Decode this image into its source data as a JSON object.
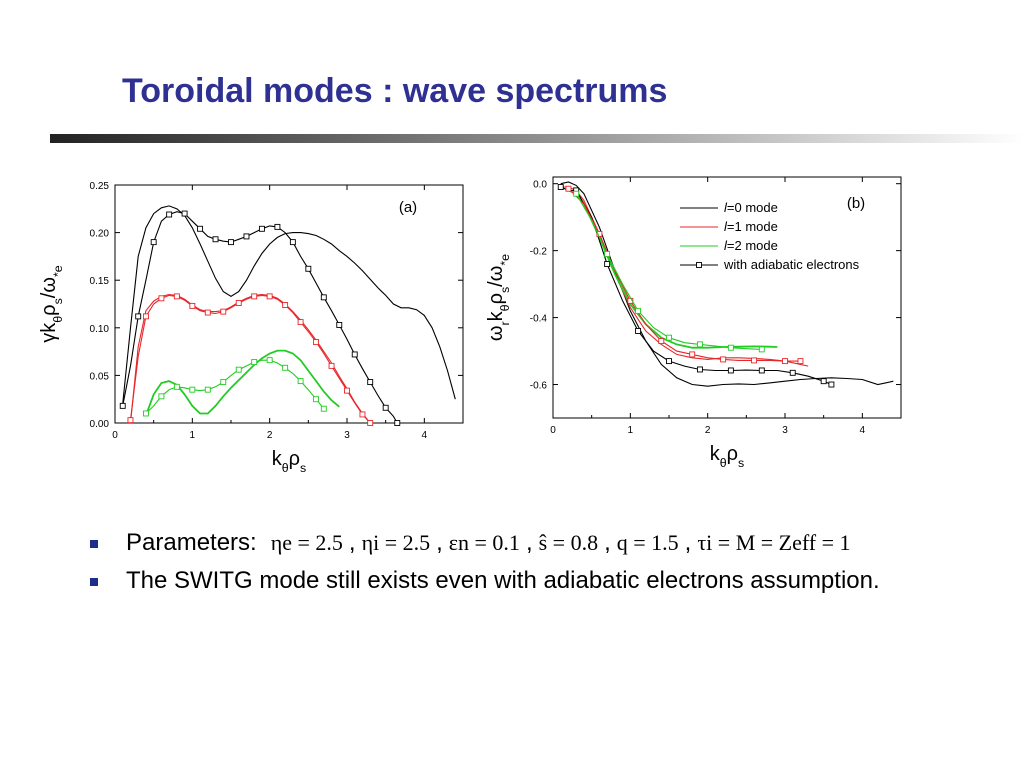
{
  "slide": {
    "title": "Toroidal modes : wave spectrums"
  },
  "bullets": {
    "params_label": "Parameters:",
    "params": [
      "ηe = 2.5",
      "ηi = 2.5",
      "εn = 0.1",
      "ŝ = 0.8",
      "q = 1.5",
      "τi = M = Zeff = 1"
    ],
    "note": "The SWITG mode still exists even with adiabatic electrons assumption."
  },
  "colors": {
    "title": "#2e3192",
    "bullet": "#1f2d8a",
    "l0": "#000000",
    "l1": "#e8262a",
    "l2": "#22cc22",
    "adiabatic": "#000000"
  },
  "chart_data": [
    {
      "type": "line",
      "panel_label": "(a)",
      "xlabel": "kθρs",
      "ylabel": "γkθρs/ω*e",
      "xlim": [
        0,
        4.5
      ],
      "ylim": [
        0,
        0.25
      ],
      "x_ticks": [
        "0",
        "1",
        "2",
        "3",
        "4"
      ],
      "y_ticks": [
        "0.00",
        "0.05",
        "0.10",
        "0.15",
        "0.20",
        "0.25"
      ],
      "series": [
        {
          "color": "#000000",
          "marker": "none",
          "x": [
            0.1,
            0.2,
            0.3,
            0.4,
            0.5,
            0.6,
            0.7,
            0.8,
            0.9,
            1.0,
            1.1,
            1.2,
            1.3,
            1.4,
            1.5,
            1.6,
            1.7,
            1.8,
            1.9,
            2.0,
            2.1,
            2.2,
            2.3,
            2.4,
            2.5,
            2.6,
            2.7,
            2.8,
            2.9,
            3.0,
            3.1,
            3.2,
            3.3,
            3.4,
            3.5,
            3.6,
            3.7,
            3.8,
            3.9,
            4.0,
            4.1,
            4.2,
            4.3,
            4.4
          ],
          "y": [
            0.02,
            0.1,
            0.175,
            0.205,
            0.22,
            0.226,
            0.228,
            0.225,
            0.218,
            0.205,
            0.188,
            0.17,
            0.152,
            0.138,
            0.133,
            0.138,
            0.15,
            0.165,
            0.178,
            0.188,
            0.195,
            0.199,
            0.2,
            0.2,
            0.199,
            0.197,
            0.193,
            0.188,
            0.181,
            0.175,
            0.168,
            0.16,
            0.151,
            0.142,
            0.134,
            0.125,
            0.121,
            0.121,
            0.119,
            0.113,
            0.1,
            0.08,
            0.055,
            0.025
          ]
        },
        {
          "color": "#000000",
          "marker": "square",
          "x": [
            0.1,
            0.2,
            0.3,
            0.4,
            0.5,
            0.6,
            0.7,
            0.8,
            0.9,
            1.0,
            1.1,
            1.2,
            1.3,
            1.4,
            1.5,
            1.6,
            1.7,
            1.8,
            1.9,
            2.0,
            2.1,
            2.2,
            2.3,
            2.4,
            2.5,
            2.6,
            2.7,
            2.8,
            2.9,
            3.0,
            3.1,
            3.2,
            3.3,
            3.4,
            3.5,
            3.6,
            3.65
          ],
          "y": [
            0.018,
            0.06,
            0.112,
            0.15,
            0.19,
            0.212,
            0.219,
            0.222,
            0.22,
            0.212,
            0.204,
            0.196,
            0.193,
            0.191,
            0.19,
            0.193,
            0.196,
            0.2,
            0.204,
            0.207,
            0.206,
            0.2,
            0.19,
            0.175,
            0.162,
            0.147,
            0.132,
            0.118,
            0.103,
            0.088,
            0.072,
            0.057,
            0.043,
            0.029,
            0.016,
            0.007,
            0.0
          ]
        },
        {
          "color": "#e8262a",
          "marker": "none",
          "x": [
            0.2,
            0.3,
            0.4,
            0.5,
            0.6,
            0.7,
            0.8,
            0.9,
            1.0,
            1.1,
            1.2,
            1.3,
            1.4,
            1.5,
            1.6,
            1.7,
            1.8,
            1.9,
            2.0,
            2.1,
            2.2,
            2.3,
            2.4,
            2.5,
            2.6,
            2.7,
            2.8,
            2.9,
            3.0,
            3.1,
            3.2,
            3.3
          ],
          "y": [
            0.0,
            0.08,
            0.118,
            0.128,
            0.133,
            0.135,
            0.134,
            0.13,
            0.124,
            0.119,
            0.117,
            0.117,
            0.118,
            0.122,
            0.127,
            0.131,
            0.134,
            0.135,
            0.134,
            0.131,
            0.125,
            0.117,
            0.108,
            0.098,
            0.087,
            0.075,
            0.063,
            0.049,
            0.036,
            0.022,
            0.01,
            0.0
          ]
        },
        {
          "color": "#e8262a",
          "marker": "square",
          "x": [
            0.2,
            0.3,
            0.4,
            0.5,
            0.6,
            0.7,
            0.8,
            0.9,
            1.0,
            1.1,
            1.2,
            1.3,
            1.4,
            1.5,
            1.6,
            1.7,
            1.8,
            1.9,
            2.0,
            2.1,
            2.2,
            2.3,
            2.4,
            2.5,
            2.6,
            2.7,
            2.8,
            2.9,
            3.0,
            3.1,
            3.2,
            3.3
          ],
          "y": [
            0.003,
            0.07,
            0.112,
            0.125,
            0.131,
            0.134,
            0.133,
            0.129,
            0.123,
            0.118,
            0.116,
            0.115,
            0.117,
            0.121,
            0.126,
            0.13,
            0.133,
            0.134,
            0.133,
            0.13,
            0.124,
            0.116,
            0.106,
            0.096,
            0.085,
            0.073,
            0.06,
            0.047,
            0.034,
            0.021,
            0.009,
            0.0
          ]
        },
        {
          "color": "#22cc22",
          "marker": "none",
          "x": [
            0.4,
            0.5,
            0.6,
            0.7,
            0.8,
            0.9,
            1.0,
            1.1,
            1.2,
            1.3,
            1.4,
            1.5,
            1.6,
            1.7,
            1.8,
            1.9,
            2.0,
            2.1,
            2.2,
            2.3,
            2.4,
            2.5,
            2.6,
            2.7,
            2.8,
            2.9
          ],
          "y": [
            0.008,
            0.03,
            0.042,
            0.044,
            0.04,
            0.03,
            0.018,
            0.01,
            0.01,
            0.018,
            0.028,
            0.037,
            0.045,
            0.053,
            0.061,
            0.068,
            0.073,
            0.076,
            0.076,
            0.073,
            0.066,
            0.055,
            0.044,
            0.033,
            0.024,
            0.017
          ]
        },
        {
          "color": "#22cc22",
          "marker": "square",
          "x": [
            0.4,
            0.5,
            0.6,
            0.7,
            0.8,
            0.9,
            1.0,
            1.1,
            1.2,
            1.3,
            1.4,
            1.5,
            1.6,
            1.7,
            1.8,
            1.9,
            2.0,
            2.1,
            2.2,
            2.3,
            2.4,
            2.5,
            2.6,
            2.7
          ],
          "y": [
            0.01,
            0.018,
            0.028,
            0.035,
            0.038,
            0.037,
            0.035,
            0.034,
            0.035,
            0.038,
            0.043,
            0.05,
            0.056,
            0.06,
            0.064,
            0.066,
            0.066,
            0.063,
            0.058,
            0.052,
            0.044,
            0.035,
            0.025,
            0.015
          ]
        }
      ]
    },
    {
      "type": "line",
      "panel_label": "(b)",
      "xlabel": "kθρs",
      "ylabel": "ωrkθρs/ω*e",
      "xlim": [
        0,
        4.5
      ],
      "ylim": [
        -0.7,
        0.02
      ],
      "x_ticks": [
        "0",
        "1",
        "2",
        "3",
        "4"
      ],
      "y_ticks": [
        "0.0",
        "-0.2",
        "-0.4",
        "-0.6"
      ],
      "legend": [
        {
          "label": "l=0 mode",
          "l": "l",
          "rest": "=0 mode",
          "color": "#000000",
          "marker": "none"
        },
        {
          "label": "l=1 mode",
          "l": "l",
          "rest": "=1 mode",
          "color": "#e8262a",
          "marker": "none"
        },
        {
          "label": "l=2 mode",
          "l": "l",
          "rest": "=2 mode",
          "color": "#22cc22",
          "marker": "none"
        },
        {
          "label": "with adiabatic electrons",
          "l": "",
          "rest": "with adiabatic electrons",
          "color": "#000000",
          "marker": "square"
        }
      ],
      "legend_position": "top-right",
      "series": [
        {
          "name": "l=0 mode",
          "color": "#000000",
          "marker": "none",
          "x": [
            0.1,
            0.2,
            0.3,
            0.4,
            0.6,
            0.8,
            1.0,
            1.2,
            1.4,
            1.6,
            1.8,
            2.0,
            2.2,
            2.4,
            2.6,
            2.8,
            3.0,
            3.2,
            3.4,
            3.6,
            3.8,
            4.0,
            4.2,
            4.3,
            4.4
          ],
          "y": [
            0.0,
            0.005,
            -0.005,
            -0.03,
            -0.13,
            -0.26,
            -0.38,
            -0.47,
            -0.54,
            -0.58,
            -0.6,
            -0.605,
            -0.6,
            -0.598,
            -0.6,
            -0.595,
            -0.59,
            -0.585,
            -0.582,
            -0.58,
            -0.582,
            -0.585,
            -0.6,
            -0.595,
            -0.59
          ]
        },
        {
          "name": "l=1 mode",
          "color": "#e8262a",
          "marker": "none",
          "x": [
            0.1,
            0.2,
            0.3,
            0.4,
            0.6,
            0.8,
            1.0,
            1.2,
            1.4,
            1.6,
            1.8,
            2.0,
            2.2,
            2.4,
            2.6,
            2.8,
            3.0,
            3.2,
            3.3
          ],
          "y": [
            -0.01,
            -0.01,
            -0.02,
            -0.05,
            -0.15,
            -0.27,
            -0.37,
            -0.44,
            -0.48,
            -0.51,
            -0.52,
            -0.525,
            -0.52,
            -0.52,
            -0.522,
            -0.525,
            -0.53,
            -0.54,
            -0.545
          ]
        },
        {
          "name": "l=2 mode",
          "color": "#22cc22",
          "marker": "none",
          "x": [
            0.2,
            0.3,
            0.4,
            0.6,
            0.8,
            1.0,
            1.2,
            1.4,
            1.6,
            1.8,
            2.0,
            2.2,
            2.4,
            2.6,
            2.8,
            2.9
          ],
          "y": [
            -0.02,
            -0.03,
            -0.06,
            -0.16,
            -0.27,
            -0.36,
            -0.42,
            -0.46,
            -0.48,
            -0.49,
            -0.49,
            -0.488,
            -0.487,
            -0.486,
            -0.487,
            -0.488
          ]
        },
        {
          "name": "with adiabatic electrons",
          "color": "#000000",
          "marker": "square",
          "x": [
            0.1,
            0.2,
            0.3,
            0.5,
            0.7,
            0.9,
            1.1,
            1.3,
            1.5,
            1.7,
            1.9,
            2.1,
            2.3,
            2.5,
            2.7,
            2.9,
            3.1,
            3.3,
            3.5,
            3.6
          ],
          "y": [
            -0.01,
            -0.02,
            -0.02,
            -0.1,
            -0.24,
            -0.35,
            -0.44,
            -0.5,
            -0.53,
            -0.545,
            -0.555,
            -0.558,
            -0.558,
            -0.557,
            -0.558,
            -0.558,
            -0.565,
            -0.575,
            -0.59,
            -0.6
          ]
        },
        {
          "color": "#e8262a",
          "marker": "square",
          "x": [
            0.2,
            0.4,
            0.6,
            0.8,
            1.0,
            1.2,
            1.4,
            1.6,
            1.8,
            2.0,
            2.2,
            2.4,
            2.6,
            2.8,
            3.0,
            3.2
          ],
          "y": [
            -0.015,
            -0.06,
            -0.15,
            -0.26,
            -0.35,
            -0.42,
            -0.47,
            -0.5,
            -0.51,
            -0.52,
            -0.525,
            -0.528,
            -0.528,
            -0.528,
            -0.53,
            -0.53
          ]
        },
        {
          "color": "#22cc22",
          "marker": "square",
          "x": [
            0.3,
            0.5,
            0.7,
            0.9,
            1.1,
            1.3,
            1.5,
            1.7,
            1.9,
            2.1,
            2.3,
            2.5,
            2.7
          ],
          "y": [
            -0.03,
            -0.11,
            -0.21,
            -0.3,
            -0.38,
            -0.43,
            -0.46,
            -0.475,
            -0.48,
            -0.485,
            -0.49,
            -0.493,
            -0.495
          ]
        }
      ]
    }
  ]
}
